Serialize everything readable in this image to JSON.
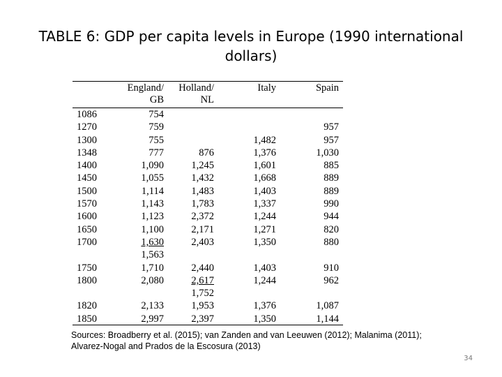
{
  "title": "TABLE 6: GDP per capita levels in Europe (1990 international dollars)",
  "table": {
    "headers": [
      "",
      "England/\nGB",
      "Holland/\nNL",
      "Italy",
      "Spain"
    ],
    "rows": [
      [
        "1086",
        "754",
        "",
        "",
        ""
      ],
      [
        "1270",
        "759",
        "",
        "",
        "957"
      ],
      [
        "1300",
        "755",
        "",
        "1,482",
        "957"
      ],
      [
        "1348",
        "777",
        "876",
        "1,376",
        "1,030"
      ],
      [
        "1400",
        "1,090",
        "1,245",
        "1,601",
        "885"
      ],
      [
        "1450",
        "1,055",
        "1,432",
        "1,668",
        "889"
      ],
      [
        "1500",
        "1,114",
        "1,483",
        "1,403",
        "889"
      ],
      [
        "1570",
        "1,143",
        "1,783",
        "1,337",
        "990"
      ],
      [
        "1600",
        "1,123",
        "2,372",
        "1,244",
        "944"
      ],
      [
        "1650",
        "1,100",
        "2,171",
        "1,271",
        "820"
      ],
      [
        "1700",
        "1,630",
        "2,403",
        "1,350",
        "880"
      ],
      [
        "",
        "1,563",
        "",
        "",
        ""
      ],
      [
        "1750",
        "1,710",
        "2,440",
        "1,403",
        "910"
      ],
      [
        "1800",
        "2,080",
        "2,617",
        "1,244",
        "962"
      ],
      [
        "",
        "",
        "1,752",
        "",
        ""
      ],
      [
        "1820",
        "2,133",
        "1,953",
        "1,376",
        "1,087"
      ],
      [
        "1850",
        "2,997",
        "2,397",
        "1,350",
        "1,144"
      ]
    ],
    "underlined": [
      [
        10,
        1
      ],
      [
        13,
        2
      ]
    ]
  },
  "sources": "Sources: Broadberry et al. (2015); van Zanden and van Leeuwen (2012); Malanima (2011); Alvarez-Nogal and Prados de la Escosura (2013)",
  "page_number": "34"
}
